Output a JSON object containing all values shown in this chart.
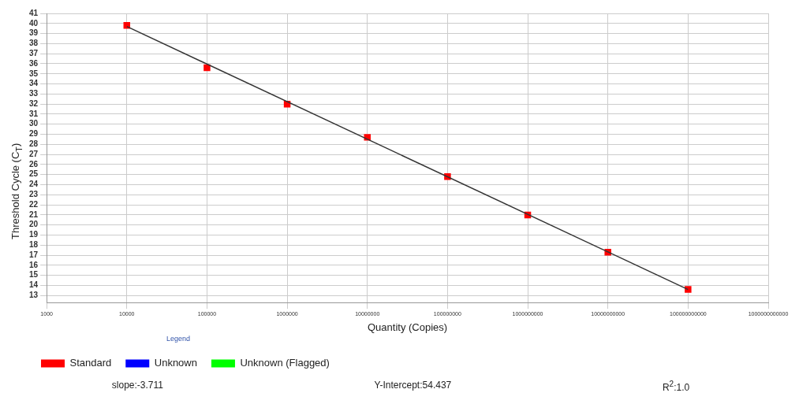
{
  "chart_data": {
    "type": "scatter",
    "xlabel": "Quantity (Copies)",
    "ylabel": "Threshold Cycle (C$_{T}$)",
    "log": "x",
    "legend": "bottom",
    "legend_title": "Legend",
    "grid": true,
    "marker": "square",
    "xlim": [
      1000,
      1000000000000
    ],
    "xticks": [
      1000,
      10000,
      100000,
      1000000,
      10000000,
      100000000,
      1000000000,
      10000000000,
      100000000000,
      1000000000000
    ],
    "ylim": [
      12.3,
      41
    ],
    "yticks": [
      13,
      14,
      15,
      16,
      17,
      18,
      19,
      20,
      21,
      22,
      23,
      24,
      25,
      26,
      27,
      28,
      29,
      30,
      31,
      32,
      33,
      34,
      35,
      36,
      37,
      38,
      39,
      40,
      41
    ],
    "series": [
      {
        "type": "line",
        "color": "#333333",
        "line_style": "solid",
        "marker": "none",
        "x": [
          10000,
          100000000000
        ],
        "values": [
          39.7,
          13.6
        ]
      },
      {
        "name": "Standard",
        "color": "#ff0000",
        "x": [
          10000,
          100000,
          1000000,
          10000000,
          100000000,
          1000000000,
          10000000000,
          100000000000
        ],
        "values": [
          39.8,
          35.6,
          32.0,
          28.7,
          24.8,
          21.0,
          17.3,
          13.6
        ]
      },
      {
        "name": "Unknown",
        "color": "#0000ff"
      },
      {
        "name": "Unknown (Flagged)",
        "color": "#00ff00"
      }
    ],
    "annotations": [
      "slope:-3.711",
      "Y-Intercept:54.437",
      "R$^{2}$:1.0"
    ]
  }
}
